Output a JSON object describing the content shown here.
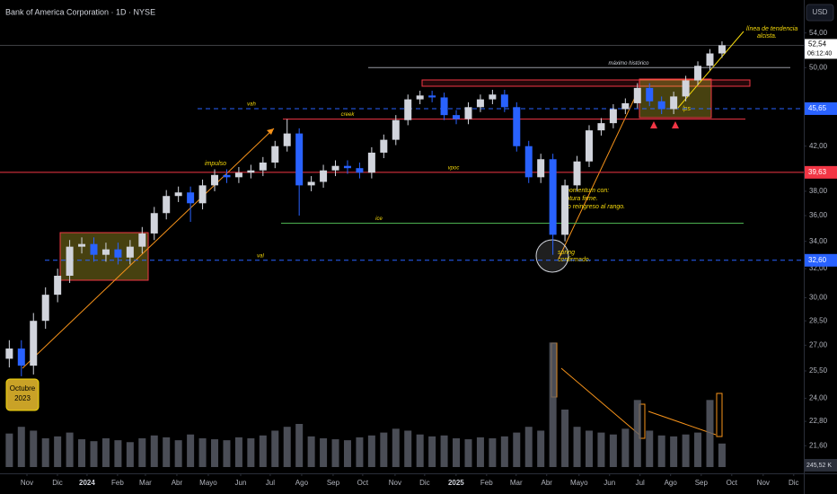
{
  "chart_data": {
    "type": "candlestick",
    "title": "Bank of America Corporation · 1D · NYSE",
    "currency": "USD",
    "log_scale": true,
    "xlim": [
      0,
      51.9
    ],
    "ylim": [
      20.6,
      58.1
    ],
    "up_color": "#d1d4dc",
    "down_color": "#2962ff",
    "xticks": [
      {
        "value": 1.74,
        "label": "Nov"
      },
      {
        "value": 3.71,
        "label": "Dic"
      },
      {
        "value": 5.62,
        "label": "2024"
      },
      {
        "value": 7.59,
        "label": "Feb"
      },
      {
        "value": 9.39,
        "label": "Mar"
      },
      {
        "value": 11.42,
        "label": "Abr"
      },
      {
        "value": 13.45,
        "label": "Mayo"
      },
      {
        "value": 15.54,
        "label": "Jun"
      },
      {
        "value": 17.45,
        "label": "Jul"
      },
      {
        "value": 19.48,
        "label": "Ago"
      },
      {
        "value": 21.51,
        "label": "Sep"
      },
      {
        "value": 23.42,
        "label": "Oct"
      },
      {
        "value": 25.51,
        "label": "Nov"
      },
      {
        "value": 27.42,
        "label": "Dic"
      },
      {
        "value": 29.45,
        "label": "2025"
      },
      {
        "value": 31.42,
        "label": "Feb"
      },
      {
        "value": 33.33,
        "label": "Mar"
      },
      {
        "value": 35.3,
        "label": "Abr"
      },
      {
        "value": 37.39,
        "label": "Mayo"
      },
      {
        "value": 39.36,
        "label": "Jun"
      },
      {
        "value": 41.33,
        "label": "Jul"
      },
      {
        "value": 43.3,
        "label": "Ago"
      },
      {
        "value": 45.28,
        "label": "Sep"
      },
      {
        "value": 47.25,
        "label": "Oct"
      },
      {
        "value": 49.28,
        "label": "Nov"
      },
      {
        "value": 51.25,
        "label": "Dic"
      }
    ],
    "yticks": [
      {
        "value": 54,
        "label": "54,00"
      },
      {
        "value": 50,
        "label": "50,00"
      },
      {
        "value": 42,
        "label": "42,00"
      },
      {
        "value": 38,
        "label": "38,00"
      },
      {
        "value": 36,
        "label": "36,00"
      },
      {
        "value": 34,
        "label": "34,00"
      },
      {
        "value": 32,
        "label": "32,00"
      },
      {
        "value": 30,
        "label": "30,00"
      },
      {
        "value": 28.5,
        "label": "28,50"
      },
      {
        "value": 27,
        "label": "27,00"
      },
      {
        "value": 25.5,
        "label": "25,50"
      },
      {
        "value": 24,
        "label": "24,00"
      },
      {
        "value": 22.8,
        "label": "22,80"
      },
      {
        "value": 21.6,
        "label": "21,60"
      }
    ],
    "x": [
      0.6,
      1.38,
      2.16,
      2.94,
      3.72,
      4.5,
      5.28,
      6.06,
      6.84,
      7.62,
      8.4,
      9.18,
      9.96,
      10.74,
      11.52,
      12.3,
      13.08,
      13.86,
      14.64,
      15.42,
      16.2,
      16.98,
      17.76,
      18.54,
      19.32,
      20.1,
      20.88,
      21.66,
      22.44,
      23.22,
      24.0,
      24.78,
      25.56,
      26.34,
      27.12,
      27.9,
      28.68,
      29.46,
      30.24,
      31.02,
      31.8,
      32.58,
      33.36,
      34.14,
      34.92,
      35.7,
      36.48,
      37.26,
      38.04,
      38.82,
      39.6,
      40.38,
      41.16,
      41.94,
      42.72,
      43.5,
      44.28,
      45.06,
      45.84,
      46.62
    ],
    "open": [
      26.2,
      26.8,
      25.8,
      28.5,
      30.2,
      31.5,
      33.6,
      33.8,
      33.0,
      33.4,
      32.8,
      33.6,
      34.6,
      36.2,
      37.6,
      37.9,
      37.0,
      38.5,
      39.4,
      39.2,
      39.6,
      39.8,
      40.5,
      42.0,
      43.2,
      38.5,
      38.8,
      39.8,
      40.2,
      40.0,
      39.6,
      41.4,
      42.6,
      44.5,
      46.6,
      47.0,
      46.8,
      45.0,
      44.6,
      45.8,
      46.6,
      47.1,
      45.8,
      42.0,
      39.2,
      40.8,
      34.5,
      38.5,
      40.6,
      43.5,
      44.2,
      45.6,
      46.2,
      47.8,
      46.4,
      45.6,
      46.9,
      48.6,
      50.2,
      51.6
    ],
    "high": [
      27.3,
      27.3,
      29.0,
      30.7,
      32.0,
      34.1,
      34.3,
      34.3,
      33.9,
      33.9,
      34.1,
      35.1,
      36.7,
      38.1,
      38.4,
      38.4,
      39.0,
      39.9,
      39.9,
      40.1,
      40.3,
      41.0,
      42.5,
      44.6,
      43.7,
      39.3,
      40.3,
      40.7,
      40.7,
      40.5,
      41.9,
      43.1,
      45.0,
      47.1,
      47.5,
      47.5,
      47.3,
      45.5,
      46.3,
      47.1,
      47.6,
      47.6,
      46.3,
      42.5,
      41.3,
      41.3,
      39.0,
      41.1,
      44.0,
      44.7,
      46.1,
      46.7,
      48.3,
      48.3,
      46.9,
      47.4,
      49.1,
      50.7,
      52.1,
      53.0
    ],
    "low": [
      25.7,
      25.2,
      25.3,
      28.0,
      29.7,
      31.0,
      33.1,
      32.5,
      32.5,
      32.3,
      32.3,
      33.1,
      34.1,
      35.7,
      37.1,
      35.5,
      36.5,
      38.0,
      38.7,
      38.7,
      39.1,
      39.3,
      40.0,
      41.5,
      36.0,
      38.0,
      38.3,
      39.3,
      39.5,
      39.1,
      39.1,
      40.9,
      42.1,
      44.0,
      46.1,
      46.3,
      44.5,
      44.1,
      44.1,
      45.3,
      46.1,
      45.3,
      41.5,
      38.7,
      38.7,
      33.0,
      34.0,
      38.0,
      40.1,
      43.0,
      43.7,
      45.1,
      45.7,
      45.9,
      45.1,
      45.1,
      46.4,
      48.1,
      49.7,
      51.1
    ],
    "close": [
      26.8,
      25.8,
      28.5,
      30.2,
      31.5,
      33.6,
      33.8,
      33.0,
      33.4,
      32.8,
      33.6,
      34.6,
      36.2,
      37.6,
      37.9,
      37.0,
      38.5,
      39.4,
      39.2,
      39.6,
      39.8,
      40.5,
      42.0,
      43.2,
      38.5,
      38.8,
      39.8,
      40.2,
      40.0,
      39.6,
      41.4,
      42.6,
      44.5,
      46.6,
      47.0,
      46.8,
      45.0,
      44.6,
      45.8,
      46.6,
      47.1,
      45.8,
      42.0,
      39.2,
      40.8,
      34.5,
      38.5,
      40.6,
      43.5,
      44.2,
      45.6,
      46.2,
      47.8,
      46.4,
      45.6,
      46.9,
      48.6,
      50.2,
      51.6,
      52.54
    ],
    "volume": {
      "color": "#5d606b",
      "vlim": [
        0,
        1500
      ],
      "values": [
        350,
        420,
        380,
        300,
        320,
        360,
        290,
        270,
        300,
        280,
        260,
        300,
        330,
        310,
        280,
        340,
        300,
        290,
        280,
        310,
        300,
        330,
        380,
        420,
        450,
        320,
        300,
        290,
        280,
        310,
        330,
        360,
        400,
        380,
        340,
        320,
        330,
        300,
        290,
        310,
        300,
        320,
        360,
        420,
        380,
        1300,
        600,
        420,
        380,
        360,
        340,
        400,
        700,
        380,
        330,
        320,
        340,
        360,
        700,
        245.52
      ],
      "last": {
        "value": 245.52,
        "label": "245,52 K"
      }
    },
    "last_price": {
      "value": 52.54,
      "label": "52,54"
    },
    "countdown": "06:12:40",
    "levels": [
      {
        "name": "vah",
        "value": 45.65,
        "label": "45,65",
        "color": "#2962ff",
        "style": "dashed"
      },
      {
        "name": "vpoc",
        "value": 39.63,
        "label": "39,63",
        "color": "#f23645",
        "style": "solid"
      },
      {
        "name": "val",
        "value": 32.6,
        "label": "32,60",
        "color": "#2962ff",
        "style": "dashed"
      },
      {
        "name": "creek",
        "value": 44.6,
        "color": "#f23645",
        "style": "solid"
      },
      {
        "name": "ice",
        "value": 35.4,
        "color": "#4caf50",
        "style": "solid"
      },
      {
        "name": "máximo histórico",
        "value": 50.0,
        "color": "#9598a1",
        "style": "solid"
      }
    ],
    "annotations": {
      "impulso": "impulso",
      "trendline": [
        "línea de tendencia",
        "alcista."
      ],
      "momentum": [
        "momentum con:",
        "rotura firme.",
        "no reingreso al rango."
      ],
      "spring": [
        "spring",
        "confirmado."
      ],
      "lps": "lps",
      "start": [
        "Octubre",
        "2023"
      ]
    }
  }
}
